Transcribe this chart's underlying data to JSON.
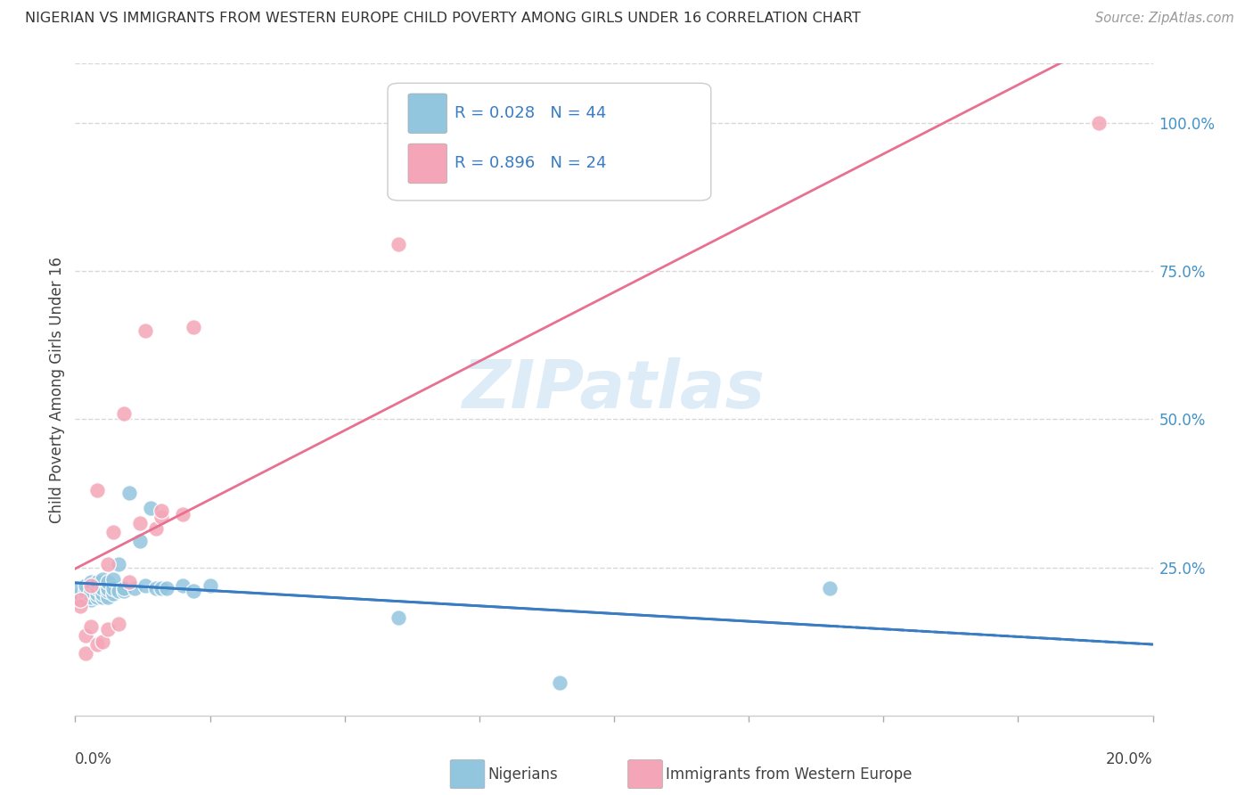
{
  "title": "NIGERIAN VS IMMIGRANTS FROM WESTERN EUROPE CHILD POVERTY AMONG GIRLS UNDER 16 CORRELATION CHART",
  "source": "Source: ZipAtlas.com",
  "ylabel": "Child Poverty Among Girls Under 16",
  "right_yticklabels": [
    "",
    "25.0%",
    "50.0%",
    "75.0%",
    "100.0%"
  ],
  "legend_blue_r": "R = 0.028",
  "legend_blue_n": "N = 44",
  "legend_pink_r": "R = 0.896",
  "legend_pink_n": "N = 24",
  "label_blue": "Nigerians",
  "label_pink": "Immigrants from Western Europe",
  "blue_color": "#92C5DE",
  "pink_color": "#F4A6B8",
  "trendline_blue_color": "#3A7CC3",
  "trendline_pink_color": "#E87090",
  "blue_scatter_x": [
    0.001,
    0.001,
    0.001,
    0.002,
    0.002,
    0.002,
    0.002,
    0.003,
    0.003,
    0.003,
    0.003,
    0.004,
    0.004,
    0.004,
    0.004,
    0.005,
    0.005,
    0.005,
    0.005,
    0.006,
    0.006,
    0.006,
    0.006,
    0.007,
    0.007,
    0.007,
    0.008,
    0.008,
    0.009,
    0.009,
    0.01,
    0.011,
    0.012,
    0.013,
    0.014,
    0.015,
    0.016,
    0.017,
    0.02,
    0.022,
    0.025,
    0.06,
    0.09,
    0.14
  ],
  "blue_scatter_y": [
    0.195,
    0.205,
    0.215,
    0.195,
    0.2,
    0.21,
    0.22,
    0.195,
    0.2,
    0.21,
    0.225,
    0.2,
    0.205,
    0.215,
    0.225,
    0.2,
    0.205,
    0.215,
    0.23,
    0.2,
    0.21,
    0.215,
    0.225,
    0.205,
    0.215,
    0.23,
    0.21,
    0.255,
    0.21,
    0.215,
    0.375,
    0.215,
    0.295,
    0.22,
    0.35,
    0.215,
    0.215,
    0.215,
    0.22,
    0.21,
    0.22,
    0.165,
    0.055,
    0.215
  ],
  "pink_scatter_x": [
    0.001,
    0.001,
    0.002,
    0.002,
    0.003,
    0.003,
    0.004,
    0.004,
    0.005,
    0.006,
    0.006,
    0.007,
    0.008,
    0.009,
    0.01,
    0.012,
    0.013,
    0.015,
    0.016,
    0.016,
    0.02,
    0.022,
    0.06,
    0.19
  ],
  "pink_scatter_y": [
    0.185,
    0.195,
    0.105,
    0.135,
    0.15,
    0.22,
    0.12,
    0.38,
    0.125,
    0.145,
    0.255,
    0.31,
    0.155,
    0.51,
    0.225,
    0.325,
    0.65,
    0.315,
    0.335,
    0.345,
    0.34,
    0.655,
    0.795,
    1.0
  ],
  "watermark": "ZIPatlas",
  "background_color": "#ffffff",
  "grid_color": "#d8d8d8",
  "xlim": [
    0.0,
    0.2
  ],
  "ylim": [
    0.0,
    1.1
  ]
}
